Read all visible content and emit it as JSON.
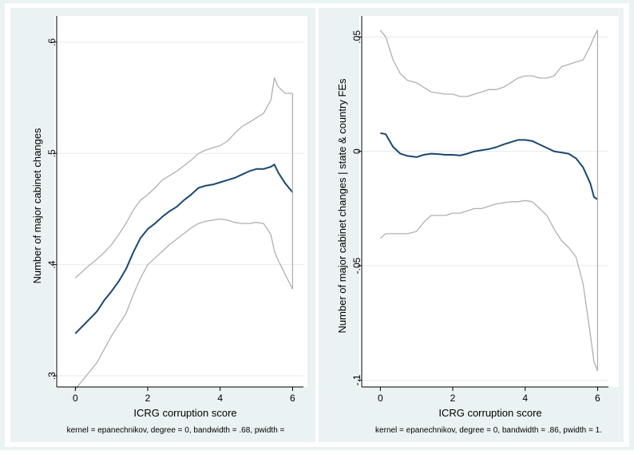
{
  "chart_data": [
    {
      "type": "line",
      "xlabel": "ICRG corruption score",
      "ylabel": "Number of major cabinet changes",
      "note": "kernel = epanechnikov, degree = 0, bandwidth = .68, pwidth =",
      "xlim": [
        -0.25,
        6.3
      ],
      "ylim": [
        0.29,
        0.615
      ],
      "xticks": [
        0,
        2,
        4,
        6
      ],
      "yticks": [
        0.3,
        0.4,
        0.5,
        0.6
      ],
      "ytick_labels": [
        ".3",
        ".4",
        ".5",
        ".6"
      ],
      "grid": true,
      "x": [
        0,
        0.3,
        0.6,
        0.8,
        1.0,
        1.2,
        1.4,
        1.6,
        1.8,
        2.0,
        2.2,
        2.4,
        2.6,
        2.8,
        3.0,
        3.2,
        3.4,
        3.6,
        3.8,
        4.0,
        4.2,
        4.4,
        4.6,
        4.8,
        5.0,
        5.2,
        5.4,
        5.5,
        5.6,
        5.8,
        6.0
      ],
      "series": [
        {
          "role": "estimate",
          "color": "#1a476f",
          "values": [
            0.338,
            0.348,
            0.358,
            0.368,
            0.376,
            0.385,
            0.396,
            0.411,
            0.424,
            0.432,
            0.437,
            0.443,
            0.448,
            0.452,
            0.458,
            0.463,
            0.469,
            0.471,
            0.472,
            0.474,
            0.476,
            0.478,
            0.481,
            0.484,
            0.486,
            0.486,
            0.488,
            0.49,
            0.483,
            0.473,
            0.465
          ]
        },
        {
          "role": "upper-ci",
          "color": "#b0b0b0",
          "values": [
            0.388,
            0.397,
            0.405,
            0.411,
            0.418,
            0.427,
            0.437,
            0.449,
            0.458,
            0.463,
            0.469,
            0.476,
            0.48,
            0.484,
            0.489,
            0.494,
            0.5,
            0.503,
            0.505,
            0.507,
            0.511,
            0.518,
            0.524,
            0.528,
            0.532,
            0.536,
            0.548,
            0.568,
            0.56,
            0.554,
            0.554
          ]
        },
        {
          "role": "lower-ci",
          "color": "#b0b0b0",
          "values": [
            0.288,
            0.3,
            0.312,
            0.324,
            0.336,
            0.346,
            0.356,
            0.373,
            0.388,
            0.4,
            0.406,
            0.412,
            0.418,
            0.423,
            0.428,
            0.433,
            0.437,
            0.439,
            0.44,
            0.441,
            0.44,
            0.438,
            0.437,
            0.437,
            0.438,
            0.437,
            0.427,
            0.412,
            0.404,
            0.391,
            0.378
          ]
        }
      ]
    },
    {
      "type": "line",
      "xlabel": "ICRG corruption score",
      "ylabel": "Number of major cabinet changes | state & country FEs",
      "note": "kernel = epanechnikov, degree = 0, bandwidth = .86, pwidth = 1.",
      "xlim": [
        -0.25,
        6.3
      ],
      "ylim": [
        -0.103,
        0.055
      ],
      "xticks": [
        0,
        2,
        4,
        6
      ],
      "yticks": [
        -0.1,
        -0.05,
        0,
        0.05
      ],
      "ytick_labels": [
        "-.1",
        "-.05",
        "0",
        ".05"
      ],
      "grid": true,
      "x": [
        0,
        0.15,
        0.35,
        0.55,
        0.75,
        1.0,
        1.2,
        1.4,
        1.6,
        1.8,
        2.0,
        2.2,
        2.4,
        2.6,
        2.8,
        3.0,
        3.2,
        3.4,
        3.6,
        3.8,
        4.0,
        4.2,
        4.4,
        4.6,
        4.8,
        5.0,
        5.2,
        5.4,
        5.6,
        5.8,
        5.9,
        6.0
      ],
      "series": [
        {
          "role": "estimate",
          "color": "#1a476f",
          "values": [
            0.008,
            0.0075,
            0.002,
            -0.001,
            -0.002,
            -0.0025,
            -0.0015,
            -0.001,
            -0.0012,
            -0.0015,
            -0.0015,
            -0.0018,
            -0.001,
            0.0,
            0.0005,
            0.001,
            0.0018,
            0.003,
            0.004,
            0.005,
            0.005,
            0.0045,
            0.003,
            0.0015,
            0.0,
            -0.0005,
            -0.001,
            -0.003,
            -0.007,
            -0.014,
            -0.02,
            -0.021
          ]
        },
        {
          "role": "upper-ci",
          "color": "#b0b0b0",
          "values": [
            0.053,
            0.05,
            0.04,
            0.034,
            0.031,
            0.03,
            0.028,
            0.026,
            0.0255,
            0.025,
            0.025,
            0.024,
            0.024,
            0.025,
            0.026,
            0.027,
            0.027,
            0.028,
            0.03,
            0.032,
            0.033,
            0.033,
            0.032,
            0.032,
            0.033,
            0.037,
            0.038,
            0.039,
            0.04,
            0.046,
            0.05,
            0.053
          ]
        },
        {
          "role": "lower-ci",
          "color": "#b0b0b0",
          "values": [
            -0.038,
            -0.036,
            -0.036,
            -0.036,
            -0.036,
            -0.035,
            -0.031,
            -0.028,
            -0.028,
            -0.028,
            -0.027,
            -0.027,
            -0.026,
            -0.025,
            -0.025,
            -0.024,
            -0.023,
            -0.0225,
            -0.022,
            -0.022,
            -0.0215,
            -0.022,
            -0.025,
            -0.028,
            -0.034,
            -0.039,
            -0.042,
            -0.046,
            -0.058,
            -0.08,
            -0.092,
            -0.096
          ]
        }
      ]
    }
  ]
}
